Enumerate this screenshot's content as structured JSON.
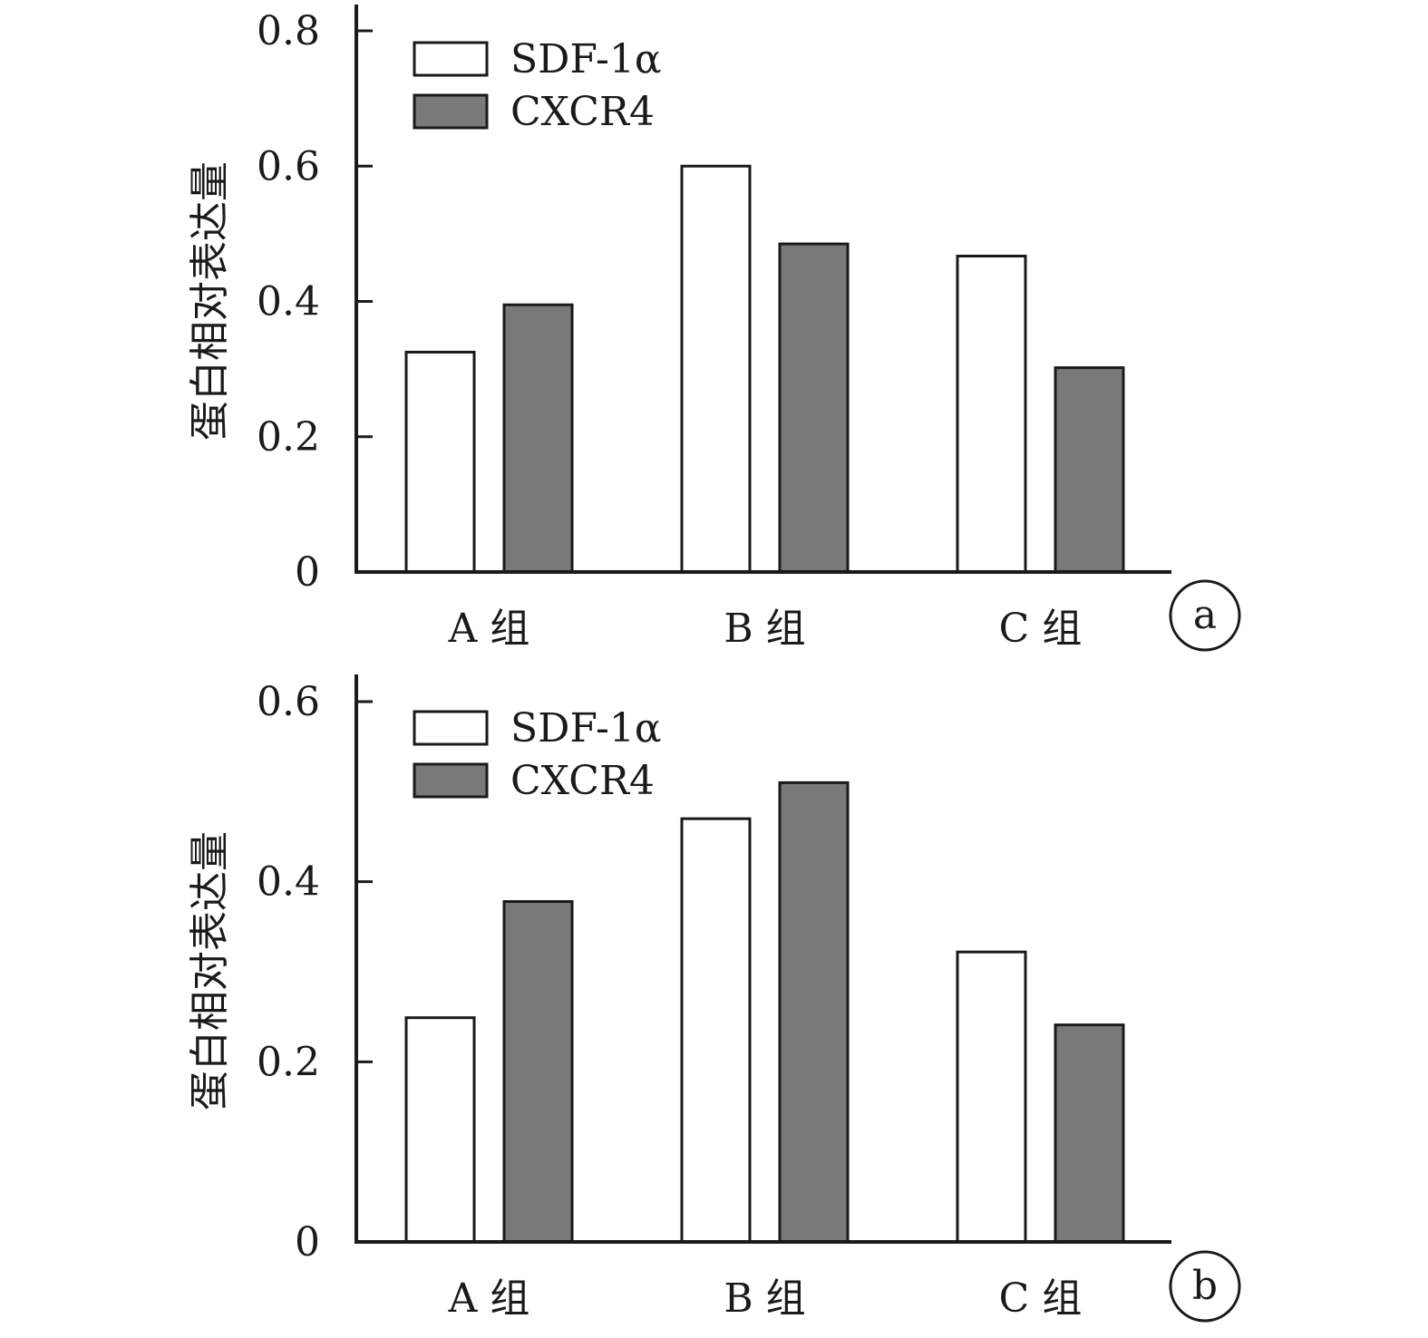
{
  "colors": {
    "sdf": "#ffffff",
    "cxcr4": "#7a7979",
    "stroke": "#1a1a1a"
  },
  "chart_data": [
    {
      "type": "bar",
      "panel_label": "a",
      "categories": [
        "A 组",
        "B 组",
        "C 组"
      ],
      "series": [
        {
          "name": "SDF-1α",
          "values": [
            0.325,
            0.6,
            0.467
          ]
        },
        {
          "name": "CXCR4",
          "values": [
            0.395,
            0.485,
            0.302
          ]
        }
      ],
      "ylabel": "蛋白相对表达量",
      "ylim": [
        0,
        0.8
      ],
      "yticks": [
        0,
        0.2,
        0.4,
        0.6,
        0.8
      ],
      "ytick_labels": [
        "0",
        "0.2",
        "0.4",
        "0.6",
        "0.8"
      ],
      "grid": false,
      "legend_position": "top-left"
    },
    {
      "type": "bar",
      "panel_label": "b",
      "categories": [
        "A 组",
        "B 组",
        "C 组"
      ],
      "series": [
        {
          "name": "SDF-1α",
          "values": [
            0.249,
            0.47,
            0.322
          ]
        },
        {
          "name": "CXCR4",
          "values": [
            0.378,
            0.51,
            0.241
          ]
        }
      ],
      "ylabel": "蛋白相对表达量",
      "ylim": [
        0,
        0.6
      ],
      "yticks": [
        0,
        0.2,
        0.4,
        0.6
      ],
      "ytick_labels": [
        "0",
        "0.2",
        "0.4",
        "0.6"
      ],
      "grid": false,
      "legend_position": "top-left"
    }
  ]
}
